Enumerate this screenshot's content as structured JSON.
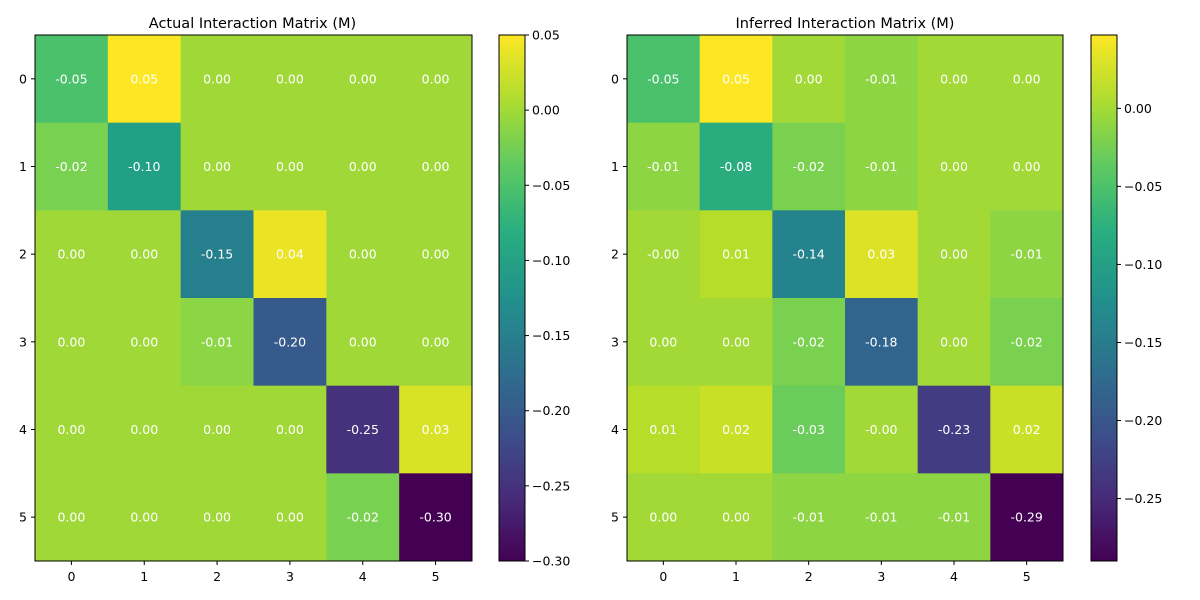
{
  "chart_data": [
    {
      "type": "heatmap",
      "title": "Actual Interaction Matrix (M)",
      "x_ticks": [
        "0",
        "1",
        "2",
        "3",
        "4",
        "5"
      ],
      "y_ticks": [
        "0",
        "1",
        "2",
        "3",
        "4",
        "5"
      ],
      "values": [
        [
          -0.05,
          0.05,
          0.0,
          0.0,
          0.0,
          0.0
        ],
        [
          -0.02,
          -0.1,
          0.0,
          0.0,
          0.0,
          0.0
        ],
        [
          0.0,
          0.0,
          -0.15,
          0.04,
          0.0,
          0.0
        ],
        [
          0.0,
          0.0,
          -0.01,
          -0.2,
          0.0,
          0.0
        ],
        [
          0.0,
          0.0,
          0.0,
          0.0,
          -0.25,
          0.03
        ],
        [
          0.0,
          0.0,
          0.0,
          0.0,
          -0.02,
          -0.3
        ]
      ],
      "labels": [
        [
          "-0.05",
          "0.05",
          "0.00",
          "0.00",
          "0.00",
          "0.00"
        ],
        [
          "-0.02",
          "-0.10",
          "0.00",
          "0.00",
          "0.00",
          "0.00"
        ],
        [
          "0.00",
          "0.00",
          "-0.15",
          "0.04",
          "0.00",
          "0.00"
        ],
        [
          "0.00",
          "0.00",
          "-0.01",
          "-0.20",
          "0.00",
          "0.00"
        ],
        [
          "0.00",
          "0.00",
          "0.00",
          "0.00",
          "-0.25",
          "0.03"
        ],
        [
          "0.00",
          "0.00",
          "0.00",
          "0.00",
          "-0.02",
          "-0.30"
        ]
      ],
      "colormap": "viridis",
      "color_range": [
        -0.3,
        0.05
      ],
      "colorbar_ticks": [
        0.05,
        0.0,
        -0.05,
        -0.1,
        -0.15,
        -0.2,
        -0.25,
        -0.3
      ],
      "colorbar_tick_labels": [
        "0.05",
        "0.00",
        "−0.05",
        "−0.10",
        "−0.15",
        "−0.20",
        "−0.25",
        "−0.30"
      ],
      "grid": false
    },
    {
      "type": "heatmap",
      "title": "Inferred Interaction Matrix (M)",
      "x_ticks": [
        "0",
        "1",
        "2",
        "3",
        "4",
        "5"
      ],
      "y_ticks": [
        "0",
        "1",
        "2",
        "3",
        "4",
        "5"
      ],
      "values": [
        [
          -0.05,
          0.05,
          0.0,
          -0.01,
          0.0,
          0.0
        ],
        [
          -0.01,
          -0.08,
          -0.02,
          -0.01,
          0.0,
          0.0
        ],
        [
          -0.0,
          0.01,
          -0.14,
          0.03,
          0.0,
          -0.01
        ],
        [
          0.0,
          0.0,
          -0.02,
          -0.18,
          0.0,
          -0.02
        ],
        [
          0.01,
          0.02,
          -0.03,
          -0.0,
          -0.23,
          0.02
        ],
        [
          0.0,
          0.0,
          -0.01,
          -0.01,
          -0.01,
          -0.29
        ]
      ],
      "labels": [
        [
          "-0.05",
          "0.05",
          "0.00",
          "-0.01",
          "0.00",
          "0.00"
        ],
        [
          "-0.01",
          "-0.08",
          "-0.02",
          "-0.01",
          "0.00",
          "0.00"
        ],
        [
          "-0.00",
          "0.01",
          "-0.14",
          "0.03",
          "0.00",
          "-0.01"
        ],
        [
          "0.00",
          "0.00",
          "-0.02",
          "-0.18",
          "0.00",
          "-0.02"
        ],
        [
          "0.01",
          "0.02",
          "-0.03",
          "-0.00",
          "-0.23",
          "0.02"
        ],
        [
          "0.00",
          "0.00",
          "-0.01",
          "-0.01",
          "-0.01",
          "-0.29"
        ]
      ],
      "colormap": "viridis",
      "color_range": [
        -0.29,
        0.047
      ],
      "colorbar_ticks": [
        0.0,
        -0.05,
        -0.1,
        -0.15,
        -0.2,
        -0.25
      ],
      "colorbar_tick_labels": [
        "0.00",
        "−0.05",
        "−0.10",
        "−0.15",
        "−0.20",
        "−0.25"
      ],
      "grid": false
    }
  ]
}
